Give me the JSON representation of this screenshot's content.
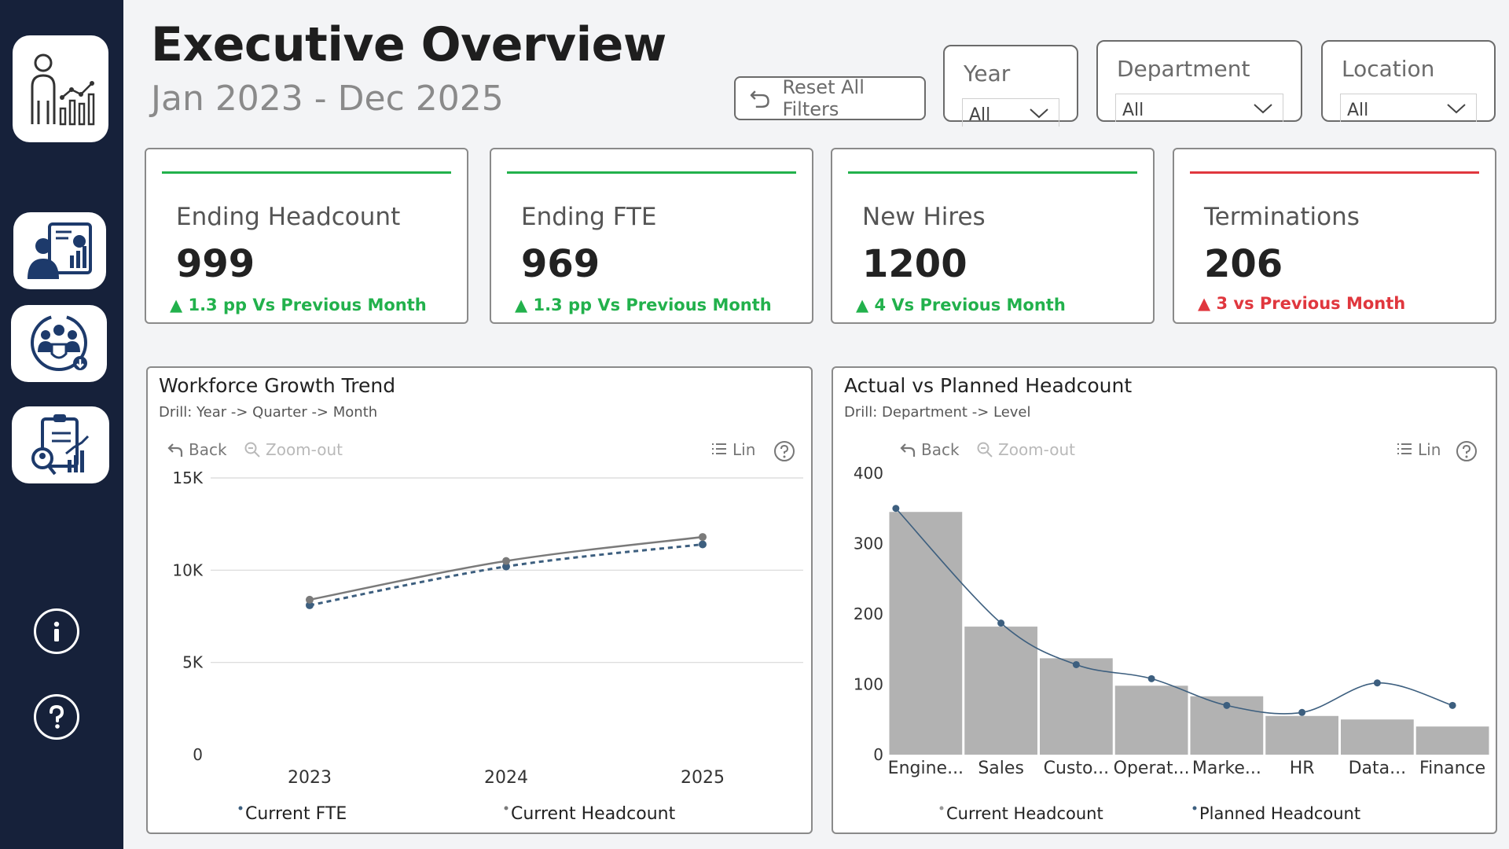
{
  "header": {
    "title": "Executive Overview",
    "subtitle": "Jan 2023 - Dec 2025",
    "reset_label": "Reset All Filters"
  },
  "filters": [
    {
      "label": "Year",
      "value": "All"
    },
    {
      "label": "Department",
      "value": "All"
    },
    {
      "label": "Location",
      "value": "All"
    }
  ],
  "kpis": [
    {
      "label": "Ending Headcount",
      "value": "999",
      "delta": "▲ 1.3 pp Vs Previous Month",
      "status_color": "#22b14c"
    },
    {
      "label": "Ending FTE",
      "value": "969",
      "delta": "▲ 1.3 pp Vs Previous Month",
      "status_color": "#22b14c"
    },
    {
      "label": "New Hires",
      "value": "1200",
      "delta": "▲ 4 Vs Previous Month",
      "status_color": "#22b14c"
    },
    {
      "label": "Terminations",
      "value": "206",
      "delta": "▲ 3 vs Previous Month",
      "status_color": "#e0373e"
    }
  ],
  "sidebar": {
    "icons": [
      "hr-analytics-logo-icon",
      "executive-report-icon",
      "workforce-icon",
      "recruitment-report-icon",
      "info-icon",
      "help-icon"
    ]
  },
  "toolbar": {
    "back": "Back",
    "zoom_out": "Zoom-out",
    "legend_toggle": "Lin"
  },
  "colors": {
    "sidebar": "#16213a",
    "bar": "#b2b2b2",
    "line_dark": "#3d5f7f",
    "line_gray": "#7a7a7a"
  },
  "chart_data": [
    {
      "type": "line",
      "title": "Workforce Growth Trend",
      "subtitle": "Drill: Year -> Quarter -> Month",
      "categories": [
        "2023",
        "2024",
        "2025"
      ],
      "y_ticks": [
        "15K",
        "10K",
        "5K",
        "0"
      ],
      "ylim": [
        0,
        15000
      ],
      "series": [
        {
          "name": "Current FTE",
          "values": [
            8100,
            10200,
            11400
          ],
          "style": "dashed",
          "color": "#3d5f7f"
        },
        {
          "name": "Current Headcount",
          "values": [
            8400,
            10500,
            11800
          ],
          "style": "solid",
          "color": "#7a7a7a"
        }
      ],
      "legend": "bottom",
      "grid": true
    },
    {
      "type": "bar",
      "title": "Actual vs Planned Headcount",
      "subtitle": "Drill: Department -> Level",
      "categories": [
        "Engine...",
        "Sales",
        "Custo...",
        "Operat...",
        "Marke...",
        "HR",
        "Data...",
        "Finance"
      ],
      "y_ticks": [
        "400",
        "300",
        "200",
        "100",
        "0"
      ],
      "ylim": [
        0,
        400
      ],
      "series": [
        {
          "name": "Current Headcount",
          "values": [
            345,
            182,
            137,
            98,
            83,
            55,
            50,
            40
          ],
          "kind": "bar",
          "color": "#b2b2b2"
        },
        {
          "name": "Planned Headcount",
          "values": [
            350,
            187,
            128,
            108,
            70,
            60,
            102,
            70
          ],
          "kind": "line",
          "color": "#3d5f7f"
        }
      ],
      "legend": "bottom",
      "grid": false
    }
  ]
}
